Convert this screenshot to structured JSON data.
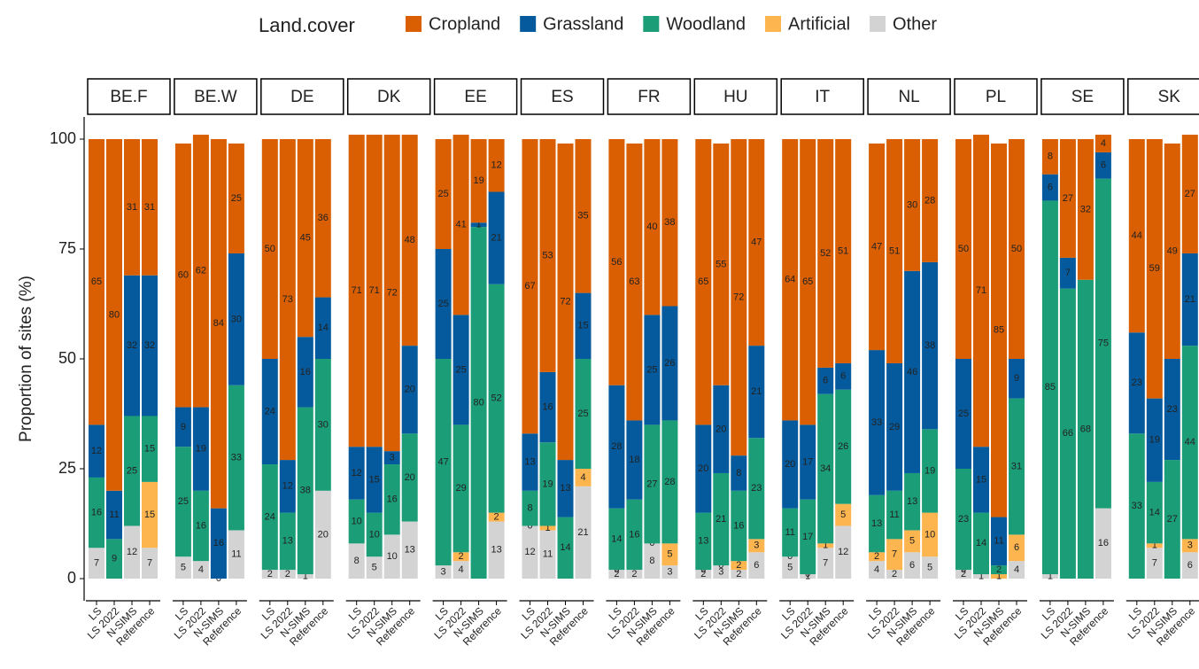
{
  "chart_data": {
    "type": "faceted-stacked-bar",
    "legend_title": "Land.cover",
    "y_label": "Proportion of sites (%)",
    "ylim": [
      0,
      100
    ],
    "yticks": [
      0,
      25,
      50,
      75,
      100
    ],
    "categories": [
      "LS",
      "LS 2022",
      "N-SIMS",
      "Reference"
    ],
    "series": [
      {
        "name": "Cropland",
        "color": "#d95f02"
      },
      {
        "name": "Grassland",
        "color": "#045a9c"
      },
      {
        "name": "Woodland",
        "color": "#1b9e77"
      },
      {
        "name": "Artificial",
        "color": "#fdb54f"
      },
      {
        "name": "Other",
        "color": "#d3d3d3"
      }
    ],
    "facets": [
      {
        "label": "BE.F",
        "values": [
          [
            65,
            80,
            31,
            31
          ],
          [
            12,
            11,
            32,
            32
          ],
          [
            16,
            9,
            25,
            15
          ],
          [
            null,
            null,
            null,
            15
          ],
          [
            7,
            null,
            12,
            7
          ]
        ]
      },
      {
        "label": "BE.W",
        "values": [
          [
            60,
            62,
            84,
            25
          ],
          [
            9,
            19,
            16,
            30
          ],
          [
            25,
            16,
            null,
            33
          ],
          [
            null,
            null,
            null,
            null
          ],
          [
            5,
            4,
            0,
            11
          ]
        ]
      },
      {
        "label": "DE",
        "values": [
          [
            50,
            73,
            45,
            36
          ],
          [
            24,
            12,
            16,
            14
          ],
          [
            24,
            13,
            38,
            30
          ],
          [
            null,
            null,
            null,
            null
          ],
          [
            2,
            2,
            1,
            20
          ]
        ]
      },
      {
        "label": "DK",
        "values": [
          [
            71,
            71,
            72,
            48
          ],
          [
            12,
            15,
            3,
            20
          ],
          [
            10,
            10,
            16,
            20
          ],
          [
            null,
            null,
            null,
            null
          ],
          [
            8,
            5,
            10,
            13
          ]
        ]
      },
      {
        "label": "EE",
        "values": [
          [
            25,
            41,
            19,
            12
          ],
          [
            25,
            25,
            1,
            21
          ],
          [
            47,
            29,
            80,
            52
          ],
          [
            null,
            2,
            null,
            2
          ],
          [
            3,
            4,
            null,
            13
          ]
        ]
      },
      {
        "label": "ES",
        "values": [
          [
            67,
            53,
            72,
            35
          ],
          [
            13,
            16,
            13,
            15
          ],
          [
            8,
            19,
            14,
            25
          ],
          [
            0,
            1,
            null,
            4
          ],
          [
            12,
            11,
            null,
            21
          ]
        ]
      },
      {
        "label": "FR",
        "values": [
          [
            56,
            63,
            40,
            38
          ],
          [
            28,
            18,
            25,
            26
          ],
          [
            14,
            16,
            27,
            28
          ],
          [
            0,
            null,
            0,
            5
          ],
          [
            2,
            2,
            8,
            3
          ]
        ]
      },
      {
        "label": "HU",
        "values": [
          [
            65,
            55,
            72,
            47
          ],
          [
            20,
            20,
            8,
            21
          ],
          [
            13,
            21,
            16,
            23
          ],
          [
            0,
            0,
            2,
            3
          ],
          [
            2,
            3,
            2,
            6
          ]
        ]
      },
      {
        "label": "IT",
        "values": [
          [
            64,
            65,
            52,
            51
          ],
          [
            20,
            17,
            6,
            6
          ],
          [
            11,
            17,
            34,
            26
          ],
          [
            0,
            0,
            1,
            5
          ],
          [
            5,
            1,
            7,
            12
          ]
        ]
      },
      {
        "label": "NL",
        "values": [
          [
            47,
            51,
            30,
            28
          ],
          [
            33,
            29,
            46,
            38
          ],
          [
            13,
            11,
            13,
            19
          ],
          [
            2,
            7,
            5,
            10
          ],
          [
            4,
            2,
            6,
            5
          ]
        ]
      },
      {
        "label": "PL",
        "values": [
          [
            50,
            71,
            85,
            50
          ],
          [
            25,
            15,
            11,
            9
          ],
          [
            23,
            14,
            2,
            31
          ],
          [
            0,
            null,
            1,
            6
          ],
          [
            2,
            1,
            null,
            4
          ]
        ]
      },
      {
        "label": "SE",
        "values": [
          [
            8,
            27,
            32,
            4
          ],
          [
            6,
            7,
            null,
            6
          ],
          [
            85,
            66,
            68,
            75
          ],
          [
            null,
            null,
            null,
            null
          ],
          [
            1,
            null,
            null,
            16
          ]
        ]
      },
      {
        "label": "SK",
        "values": [
          [
            44,
            59,
            49,
            27
          ],
          [
            23,
            19,
            23,
            21
          ],
          [
            33,
            14,
            27,
            44
          ],
          [
            null,
            1,
            null,
            3
          ],
          [
            null,
            7,
            null,
            6
          ]
        ]
      }
    ]
  }
}
